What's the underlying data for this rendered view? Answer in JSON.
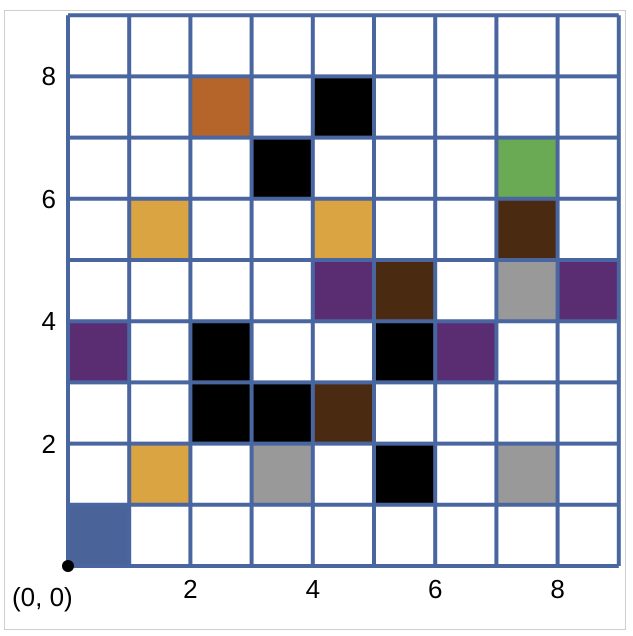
{
  "grid": {
    "cols": 9,
    "rows": 9,
    "line_color": "#4a66a0",
    "background": "#ffffff"
  },
  "origin_label": "(0, 0)",
  "x_ticks": [
    {
      "value": 2,
      "label": "2"
    },
    {
      "value": 4,
      "label": "4"
    },
    {
      "value": 6,
      "label": "6"
    },
    {
      "value": 8,
      "label": "8"
    }
  ],
  "y_ticks": [
    {
      "value": 2,
      "label": "2"
    },
    {
      "value": 4,
      "label": "4"
    },
    {
      "value": 6,
      "label": "6"
    },
    {
      "value": 8,
      "label": "8"
    }
  ],
  "colors": {
    "player": "#4a6499",
    "wall": "#000000",
    "coin": "#d9a441",
    "enemy": "#5a2d73",
    "dirt": "#4a2a10",
    "stone": "#999999",
    "goal": "#6aaa55",
    "copper": "#b5652a"
  },
  "cells": [
    {
      "x": 0,
      "y": 0,
      "type": "player"
    },
    {
      "x": 1,
      "y": 1,
      "type": "coin"
    },
    {
      "x": 3,
      "y": 1,
      "type": "stone"
    },
    {
      "x": 5,
      "y": 1,
      "type": "wall"
    },
    {
      "x": 7,
      "y": 1,
      "type": "stone"
    },
    {
      "x": 2,
      "y": 2,
      "type": "wall"
    },
    {
      "x": 3,
      "y": 2,
      "type": "wall"
    },
    {
      "x": 4,
      "y": 2,
      "type": "dirt"
    },
    {
      "x": 0,
      "y": 3,
      "type": "enemy"
    },
    {
      "x": 2,
      "y": 3,
      "type": "wall"
    },
    {
      "x": 5,
      "y": 3,
      "type": "wall"
    },
    {
      "x": 6,
      "y": 3,
      "type": "enemy"
    },
    {
      "x": 4,
      "y": 4,
      "type": "enemy"
    },
    {
      "x": 5,
      "y": 4,
      "type": "dirt"
    },
    {
      "x": 7,
      "y": 4,
      "type": "stone"
    },
    {
      "x": 8,
      "y": 4,
      "type": "enemy"
    },
    {
      "x": 1,
      "y": 5,
      "type": "coin"
    },
    {
      "x": 4,
      "y": 5,
      "type": "coin"
    },
    {
      "x": 7,
      "y": 5,
      "type": "dirt"
    },
    {
      "x": 3,
      "y": 6,
      "type": "wall"
    },
    {
      "x": 7,
      "y": 6,
      "type": "goal"
    },
    {
      "x": 2,
      "y": 7,
      "type": "copper"
    },
    {
      "x": 4,
      "y": 7,
      "type": "wall"
    }
  ]
}
